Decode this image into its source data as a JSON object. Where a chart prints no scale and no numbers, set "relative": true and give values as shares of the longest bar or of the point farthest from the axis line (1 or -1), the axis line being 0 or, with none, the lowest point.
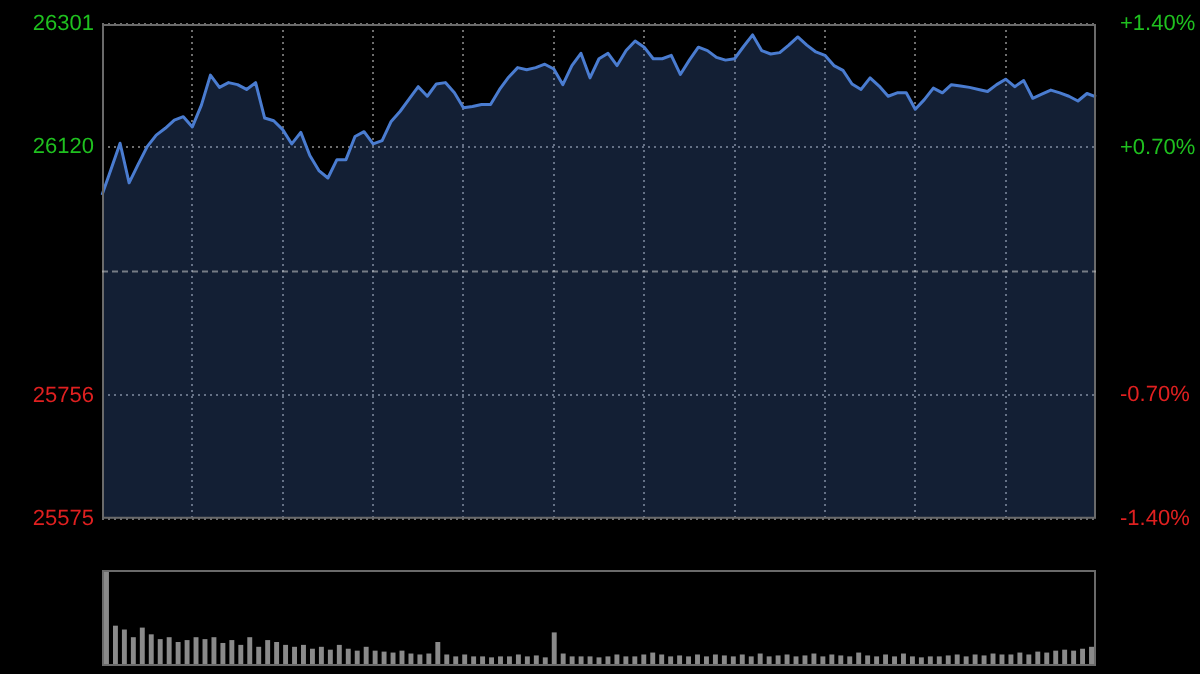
{
  "chart_data": [
    {
      "type": "area",
      "categories": [
        null,
        null,
        null,
        null,
        null,
        null,
        null,
        null,
        null,
        null,
        null,
        null,
        null,
        null,
        null,
        null,
        null,
        null,
        null,
        null,
        null,
        null,
        null,
        null,
        null,
        null,
        null,
        null,
        null,
        null,
        null,
        null,
        null,
        null,
        null,
        null,
        null,
        null,
        null,
        null,
        null,
        null,
        null,
        null,
        null,
        null,
        null,
        null,
        null,
        null,
        null,
        null,
        null,
        null,
        null,
        null,
        null,
        null,
        null,
        null,
        null,
        null,
        null,
        null,
        null,
        null,
        null,
        null,
        null,
        null,
        null,
        null,
        null,
        null,
        null,
        null,
        null,
        null,
        null,
        null,
        null,
        null,
        null,
        null,
        null,
        null,
        null,
        null,
        null,
        null,
        null,
        null,
        null,
        null,
        null,
        null,
        null,
        null,
        null,
        null,
        null,
        null,
        null,
        null,
        null,
        null,
        null,
        null,
        null,
        null,
        null
      ],
      "series": [
        {
          "color": "#4a7cd0",
          "values": [
            26050,
            26088,
            26126,
            26068,
            26095,
            26121,
            26138,
            26148,
            26160,
            26165,
            26150,
            26182,
            26226,
            26208,
            26215,
            26212,
            26205,
            26215,
            26163,
            26159,
            26146,
            26125,
            26142,
            26108,
            26086,
            26075,
            26102,
            26102,
            26136,
            26143,
            26125,
            26130,
            26158,
            26173,
            26191,
            26209,
            26195,
            26213,
            26215,
            26200,
            26178,
            26180,
            26183,
            26183,
            26205,
            26223,
            26237,
            26234,
            26237,
            26242,
            26235,
            26212,
            26240,
            26258,
            26222,
            26250,
            26258,
            26240,
            26262,
            26276,
            26267,
            26250,
            26250,
            26255,
            26227,
            26248,
            26267,
            26262,
            26252,
            26248,
            26250,
            26268,
            26285,
            26262,
            26257,
            26259,
            26270,
            26282,
            26270,
            26260,
            26255,
            26240,
            26233,
            26213,
            26205,
            26222,
            26210,
            26195,
            26200,
            26200,
            26176,
            26190,
            26207,
            26200,
            26212,
            26210,
            26208,
            26205,
            26202,
            26212,
            26220,
            26209,
            26218,
            26192,
            26198,
            26204,
            26200,
            26195,
            26188,
            26199,
            26194
          ]
        }
      ],
      "ylim": [
        25575,
        26301
      ],
      "yticks": [
        26301,
        26120,
        25756,
        25575
      ],
      "y2lim": [
        -1.4,
        1.4
      ],
      "y2ticks": [
        {
          "value": 1.4,
          "label": "+1.40%"
        },
        {
          "value": 0.7,
          "label": "+0.70%"
        },
        {
          "value": -0.7,
          "label": "-0.70%"
        },
        {
          "value": -1.4,
          "label": "-1.40%"
        }
      ],
      "ref_lines": [
        {
          "axis": "y",
          "value": 25938,
          "line_style": "dashed"
        }
      ],
      "grid": true,
      "legend": false,
      "tick_labels": "y"
    },
    {
      "type": "bar",
      "relative": true,
      "color": "#8a8a8a",
      "categories": [
        null,
        null,
        null,
        null,
        null,
        null,
        null,
        null,
        null,
        null,
        null,
        null,
        null,
        null,
        null,
        null,
        null,
        null,
        null,
        null,
        null,
        null,
        null,
        null,
        null,
        null,
        null,
        null,
        null,
        null,
        null,
        null,
        null,
        null,
        null,
        null,
        null,
        null,
        null,
        null,
        null,
        null,
        null,
        null,
        null,
        null,
        null,
        null,
        null,
        null,
        null,
        null,
        null,
        null,
        null,
        null,
        null,
        null,
        null,
        null,
        null,
        null,
        null,
        null,
        null,
        null,
        null,
        null,
        null,
        null,
        null,
        null,
        null,
        null,
        null,
        null,
        null,
        null,
        null,
        null,
        null,
        null,
        null,
        null,
        null,
        null,
        null,
        null,
        null,
        null,
        null,
        null,
        null,
        null,
        null,
        null,
        null,
        null,
        null,
        null,
        null,
        null,
        null,
        null,
        null,
        null,
        null,
        null,
        null,
        null,
        null
      ],
      "values": [
        1,
        0.42,
        0.38,
        0.3,
        0.4,
        0.33,
        0.28,
        0.3,
        0.25,
        0.27,
        0.3,
        0.28,
        0.3,
        0.24,
        0.27,
        0.22,
        0.3,
        0.2,
        0.27,
        0.25,
        0.22,
        0.2,
        0.22,
        0.18,
        0.2,
        0.17,
        0.22,
        0.18,
        0.16,
        0.2,
        0.16,
        0.15,
        0.14,
        0.16,
        0.13,
        0.12,
        0.13,
        0.25,
        0.12,
        0.1,
        0.12,
        0.1,
        0.1,
        0.09,
        0.1,
        0.1,
        0.12,
        0.1,
        0.11,
        0.09,
        0.35,
        0.13,
        0.1,
        0.1,
        0.1,
        0.09,
        0.1,
        0.12,
        0.1,
        0.1,
        0.12,
        0.14,
        0.12,
        0.1,
        0.11,
        0.1,
        0.12,
        0.1,
        0.12,
        0.11,
        0.1,
        0.12,
        0.1,
        0.13,
        0.1,
        0.11,
        0.12,
        0.1,
        0.11,
        0.13,
        0.1,
        0.12,
        0.11,
        0.1,
        0.14,
        0.11,
        0.1,
        0.12,
        0.1,
        0.13,
        0.1,
        0.09,
        0.1,
        0.1,
        0.11,
        0.12,
        0.1,
        0.12,
        0.11,
        0.13,
        0.12,
        0.12,
        0.14,
        0.12,
        0.15,
        0.14,
        0.16,
        0.17,
        0.16,
        0.18,
        0.2
      ]
    }
  ]
}
